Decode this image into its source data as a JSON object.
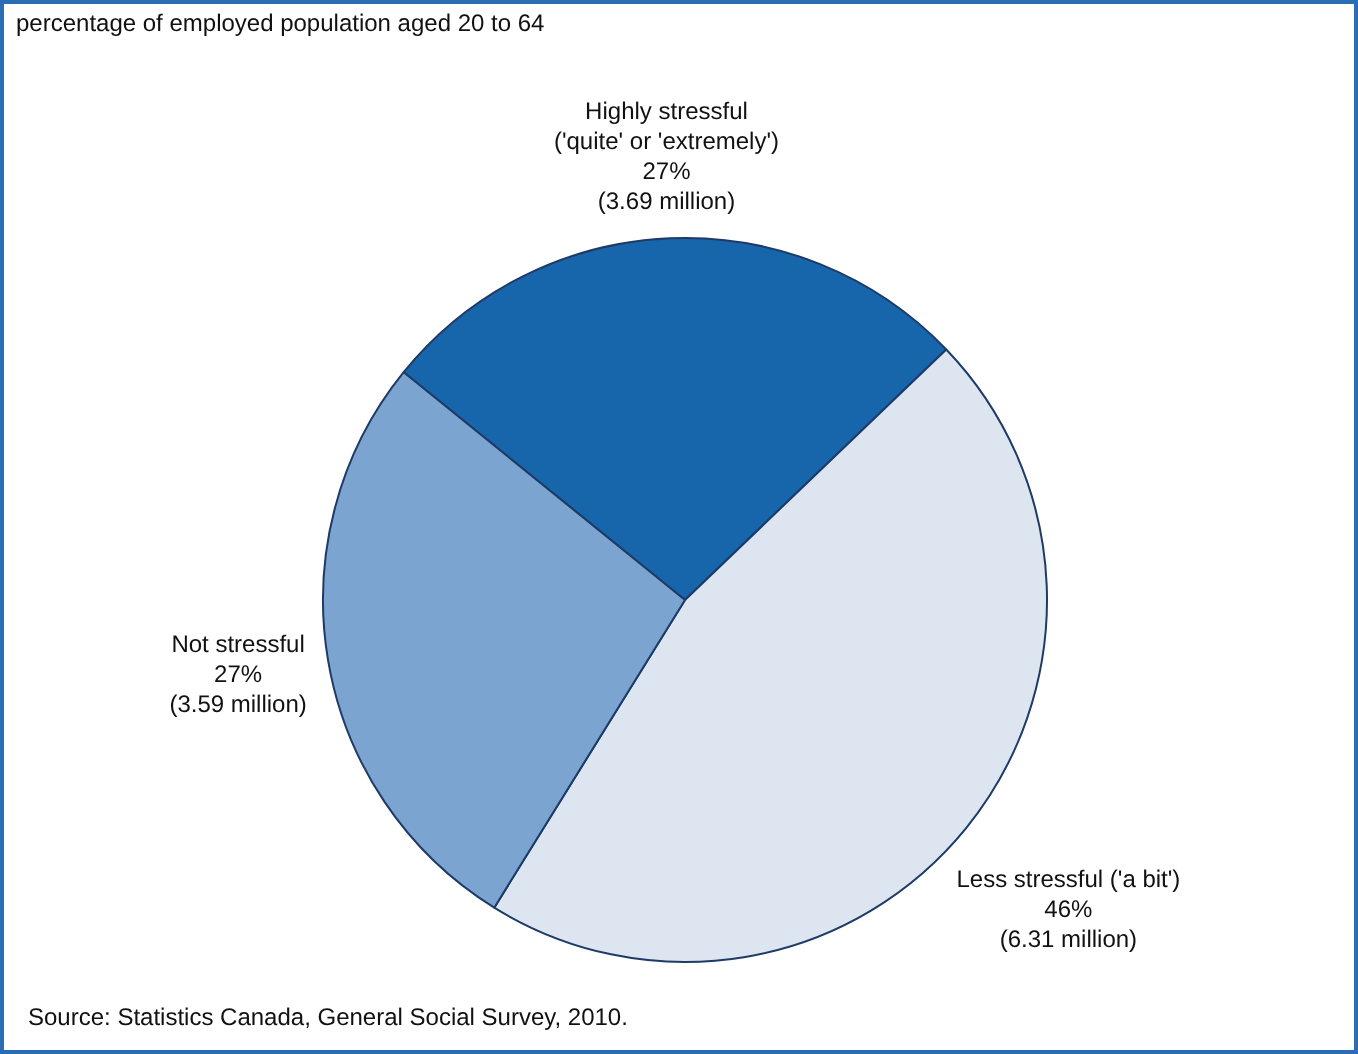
{
  "chart_data": {
    "type": "pie",
    "title": "percentage of employed population aged 20 to 64",
    "categories": [
      "Highly stressful\n('quite' or 'extremely')",
      "Less stressful ('a bit')",
      "Not stressful"
    ],
    "values": [
      27,
      46,
      27
    ],
    "value_labels": [
      "27%\n(3.69 million)",
      "46%\n(6.31 million)",
      "27%\n(3.59 million)"
    ],
    "colors": [
      "#1766ab",
      "#dde5f1",
      "#7ba4d1"
    ],
    "legend": false,
    "annotations": [
      "Source: Statistics Canada, General Social Survey, 2010."
    ]
  }
}
